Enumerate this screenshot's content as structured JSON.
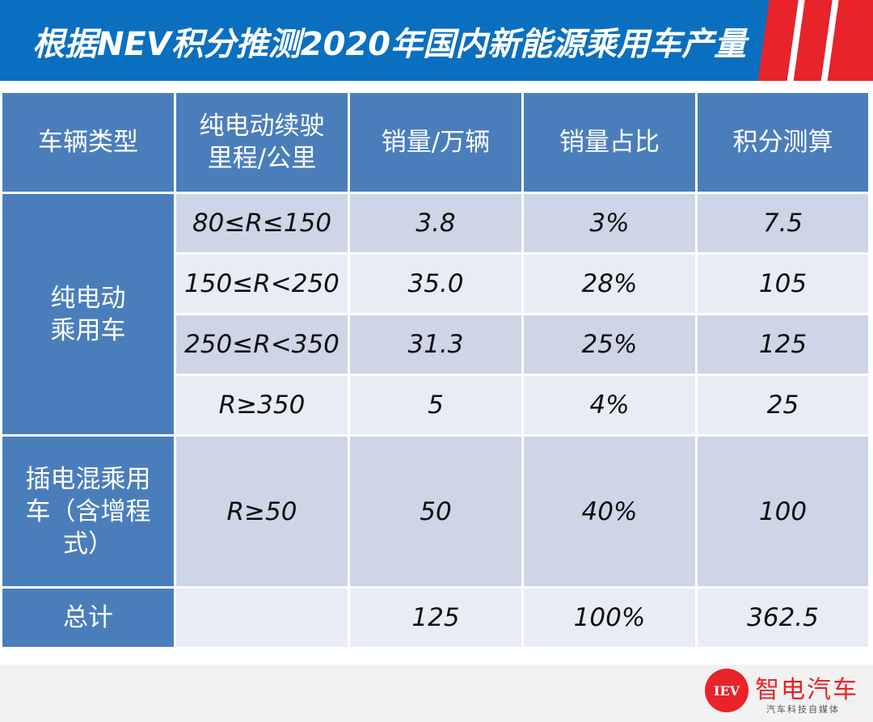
{
  "header": {
    "title": "根据NEV积分推测2020年国内新能源乘用车产量",
    "colors": {
      "background": "#0b6fc0",
      "accent": "#e8232a"
    }
  },
  "table": {
    "columns": [
      "车辆类型",
      "纯电动续驶\n里程/公里",
      "销量/万辆",
      "销量占比",
      "积分测算"
    ],
    "groups": [
      {
        "label": "纯电动\n乘用车",
        "rows": [
          {
            "range": "80≤R≤150",
            "sales": "3.8",
            "share": "3%",
            "credits": "7.5"
          },
          {
            "range": "150≤R<250",
            "sales": "35.0",
            "share": "28%",
            "credits": "105"
          },
          {
            "range": "250≤R<350",
            "sales": "31.3",
            "share": "25%",
            "credits": "125"
          },
          {
            "range": "R≥350",
            "sales": "5",
            "share": "4%",
            "credits": "25"
          }
        ]
      },
      {
        "label": "插电混乘用\n车（含增程\n式）",
        "rows": [
          {
            "range": "R≥50",
            "sales": "50",
            "share": "40%",
            "credits": "100"
          }
        ]
      }
    ],
    "total": {
      "label": "总计",
      "range": "",
      "sales": "125",
      "share": "100%",
      "credits": "362.5"
    },
    "colors": {
      "header": "#4a7ebb",
      "cell_dark": "#cdd5e6",
      "cell_light": "#e8ecf4"
    }
  },
  "footer": {
    "logo_mark": "IEV",
    "logo_name": "智电汽车",
    "logo_tagline": "汽车科技自媒体"
  }
}
